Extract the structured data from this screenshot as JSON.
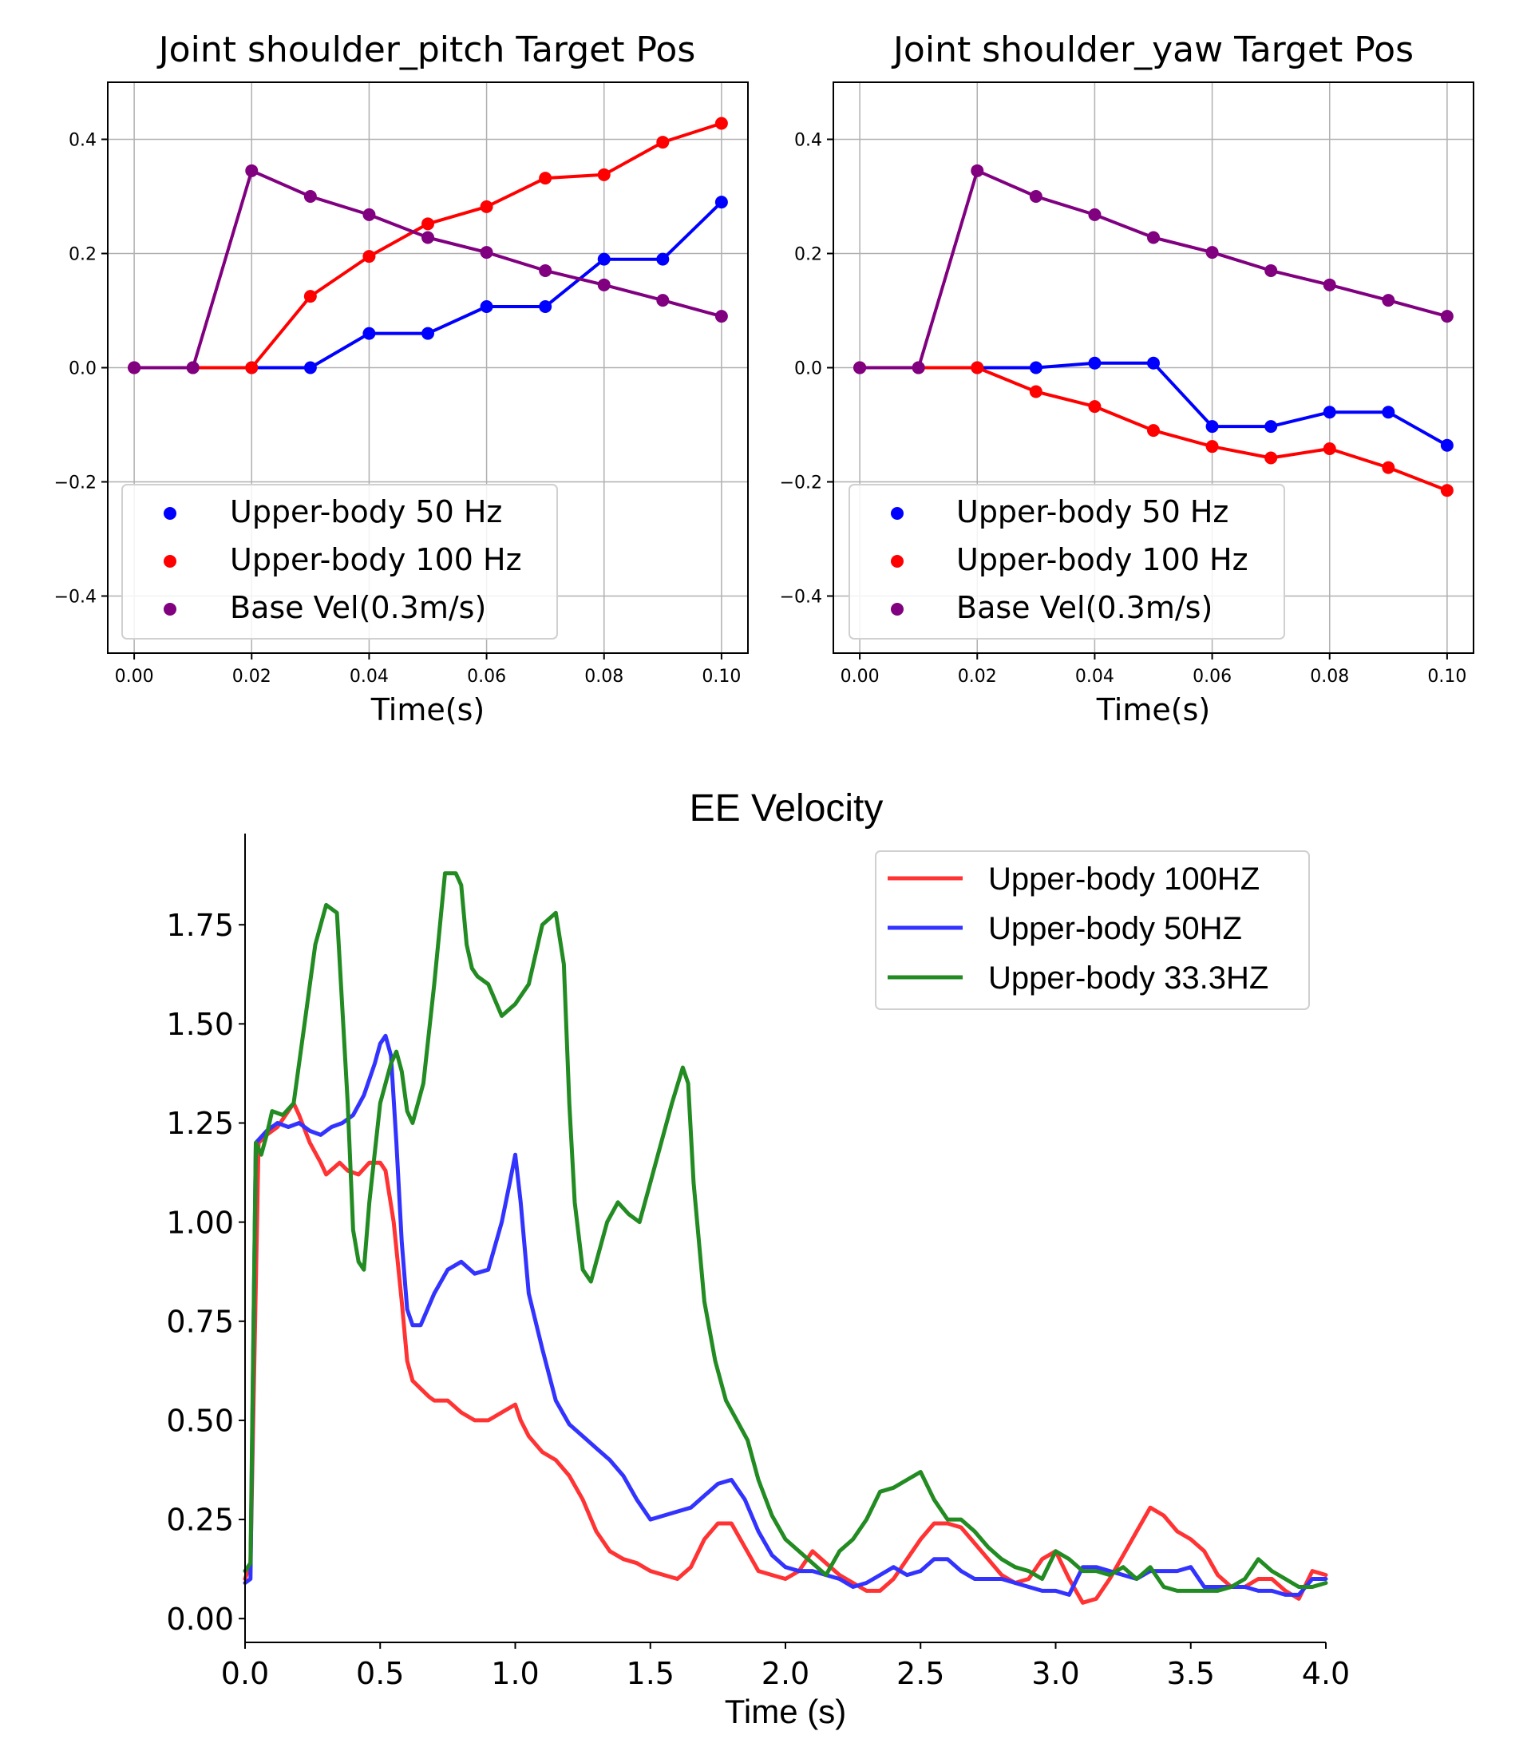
{
  "chart_data": [
    {
      "type": "line",
      "title": "Joint shoulder_pitch Target Pos",
      "xlabel": "Time(s)",
      "ylabel": "",
      "xlim": [
        -0.0045,
        0.1045
      ],
      "ylim": [
        -0.5,
        0.5
      ],
      "x_ticks": [
        0.0,
        0.02,
        0.04,
        0.06,
        0.08,
        0.1
      ],
      "x_tick_labels": [
        "0.00",
        "0.02",
        "0.04",
        "0.06",
        "0.08",
        "0.10"
      ],
      "y_ticks": [
        -0.4,
        -0.2,
        0.0,
        0.2,
        0.4
      ],
      "y_tick_labels": [
        "−0.4",
        "−0.2",
        "0.0",
        "0.2",
        "0.4"
      ],
      "grid": true,
      "legend_position": "lower-left",
      "markers": true,
      "x": [
        0.0,
        0.01,
        0.02,
        0.03,
        0.04,
        0.05,
        0.06,
        0.07,
        0.08,
        0.09,
        0.1
      ],
      "series": [
        {
          "name": "Upper-body 50 Hz",
          "color": "#0000ff",
          "values": [
            0.0,
            0.0,
            0.0,
            0.0,
            0.06,
            0.06,
            0.107,
            0.107,
            0.19,
            0.19,
            0.29
          ]
        },
        {
          "name": "Upper-body 100 Hz",
          "color": "#ff0000",
          "values": [
            0.0,
            0.0,
            0.0,
            0.125,
            0.195,
            0.252,
            0.282,
            0.332,
            0.338,
            0.395,
            0.428
          ]
        },
        {
          "name": "Base Vel(0.3m/s)",
          "color": "#800080",
          "values": [
            0.0,
            0.0,
            0.345,
            0.3,
            0.268,
            0.228,
            0.202,
            0.17,
            0.145,
            0.118,
            0.09
          ]
        }
      ]
    },
    {
      "type": "line",
      "title": "Joint shoulder_yaw Target Pos",
      "xlabel": "Time(s)",
      "ylabel": "",
      "xlim": [
        -0.0045,
        0.1045
      ],
      "ylim": [
        -0.5,
        0.5
      ],
      "x_ticks": [
        0.0,
        0.02,
        0.04,
        0.06,
        0.08,
        0.1
      ],
      "x_tick_labels": [
        "0.00",
        "0.02",
        "0.04",
        "0.06",
        "0.08",
        "0.10"
      ],
      "y_ticks": [
        -0.4,
        -0.2,
        0.0,
        0.2,
        0.4
      ],
      "y_tick_labels": [
        "−0.4",
        "−0.2",
        "0.0",
        "0.2",
        "0.4"
      ],
      "grid": true,
      "legend_position": "lower-left",
      "markers": true,
      "x": [
        0.0,
        0.01,
        0.02,
        0.03,
        0.04,
        0.05,
        0.06,
        0.07,
        0.08,
        0.09,
        0.1
      ],
      "series": [
        {
          "name": "Upper-body 50 Hz",
          "color": "#0000ff",
          "values": [
            0.0,
            0.0,
            0.0,
            0.0,
            0.008,
            0.008,
            -0.103,
            -0.103,
            -0.078,
            -0.078,
            -0.136
          ]
        },
        {
          "name": "Upper-body 100 Hz",
          "color": "#ff0000",
          "values": [
            0.0,
            0.0,
            0.0,
            -0.042,
            -0.068,
            -0.11,
            -0.138,
            -0.158,
            -0.142,
            -0.175,
            -0.215
          ]
        },
        {
          "name": "Base Vel(0.3m/s)",
          "color": "#800080",
          "values": [
            0.0,
            0.0,
            0.345,
            0.3,
            0.268,
            0.228,
            0.202,
            0.17,
            0.145,
            0.118,
            0.09
          ]
        }
      ]
    },
    {
      "type": "line",
      "title": "EE Velocity",
      "xlabel": "Time (s)",
      "ylabel": "",
      "xlim": [
        0.0,
        4.0
      ],
      "ylim": [
        -0.06,
        1.98
      ],
      "x_ticks": [
        0.0,
        0.5,
        1.0,
        1.5,
        2.0,
        2.5,
        3.0,
        3.5,
        4.0
      ],
      "x_tick_labels": [
        "0.0",
        "0.5",
        "1.0",
        "1.5",
        "2.0",
        "2.5",
        "3.0",
        "3.5",
        "4.0"
      ],
      "y_ticks": [
        0.0,
        0.25,
        0.5,
        0.75,
        1.0,
        1.25,
        1.5,
        1.75
      ],
      "y_tick_labels": [
        "0.00",
        "0.25",
        "0.50",
        "0.75",
        "1.00",
        "1.25",
        "1.50",
        "1.75"
      ],
      "grid": false,
      "legend_position": "top-right",
      "markers": false,
      "series": [
        {
          "name": "Upper-body 100HZ",
          "color": "#ff3333",
          "x": [
            0.0,
            0.02,
            0.05,
            0.08,
            0.12,
            0.16,
            0.18,
            0.2,
            0.24,
            0.28,
            0.3,
            0.35,
            0.38,
            0.42,
            0.46,
            0.5,
            0.52,
            0.55,
            0.58,
            0.6,
            0.62,
            0.65,
            0.68,
            0.7,
            0.75,
            0.8,
            0.85,
            0.9,
            0.95,
            1.0,
            1.02,
            1.05,
            1.1,
            1.15,
            1.2,
            1.25,
            1.3,
            1.35,
            1.4,
            1.45,
            1.5,
            1.55,
            1.6,
            1.65,
            1.7,
            1.75,
            1.8,
            1.85,
            1.9,
            1.95,
            2.0,
            2.05,
            2.1,
            2.15,
            2.2,
            2.25,
            2.3,
            2.35,
            2.4,
            2.45,
            2.5,
            2.55,
            2.6,
            2.65,
            2.7,
            2.75,
            2.8,
            2.85,
            2.9,
            2.95,
            3.0,
            3.05,
            3.1,
            3.15,
            3.2,
            3.25,
            3.3,
            3.35,
            3.4,
            3.45,
            3.5,
            3.55,
            3.6,
            3.65,
            3.7,
            3.75,
            3.8,
            3.85,
            3.9,
            3.95,
            4.0
          ],
          "values": [
            0.1,
            0.14,
            1.2,
            1.22,
            1.24,
            1.28,
            1.3,
            1.27,
            1.2,
            1.15,
            1.12,
            1.15,
            1.13,
            1.12,
            1.15,
            1.15,
            1.13,
            1.0,
            0.8,
            0.65,
            0.6,
            0.58,
            0.56,
            0.55,
            0.55,
            0.52,
            0.5,
            0.5,
            0.52,
            0.54,
            0.5,
            0.46,
            0.42,
            0.4,
            0.36,
            0.3,
            0.22,
            0.17,
            0.15,
            0.14,
            0.12,
            0.11,
            0.1,
            0.13,
            0.2,
            0.24,
            0.24,
            0.18,
            0.12,
            0.11,
            0.1,
            0.12,
            0.17,
            0.14,
            0.11,
            0.09,
            0.07,
            0.07,
            0.1,
            0.15,
            0.2,
            0.24,
            0.24,
            0.23,
            0.19,
            0.15,
            0.11,
            0.09,
            0.1,
            0.15,
            0.17,
            0.1,
            0.04,
            0.05,
            0.1,
            0.16,
            0.22,
            0.28,
            0.26,
            0.22,
            0.2,
            0.17,
            0.11,
            0.08,
            0.08,
            0.1,
            0.1,
            0.07,
            0.05,
            0.12,
            0.11
          ]
        },
        {
          "name": "Upper-body 50HZ",
          "color": "#3333ff",
          "x": [
            0.0,
            0.02,
            0.04,
            0.08,
            0.12,
            0.16,
            0.2,
            0.24,
            0.28,
            0.32,
            0.36,
            0.4,
            0.44,
            0.48,
            0.5,
            0.52,
            0.54,
            0.56,
            0.58,
            0.6,
            0.62,
            0.65,
            0.7,
            0.75,
            0.8,
            0.85,
            0.9,
            0.95,
            0.98,
            1.0,
            1.02,
            1.05,
            1.1,
            1.15,
            1.2,
            1.25,
            1.3,
            1.35,
            1.4,
            1.45,
            1.5,
            1.55,
            1.6,
            1.65,
            1.7,
            1.75,
            1.8,
            1.85,
            1.9,
            1.95,
            2.0,
            2.05,
            2.1,
            2.15,
            2.2,
            2.25,
            2.3,
            2.35,
            2.4,
            2.45,
            2.5,
            2.55,
            2.6,
            2.65,
            2.7,
            2.75,
            2.8,
            2.85,
            2.9,
            2.95,
            3.0,
            3.05,
            3.1,
            3.15,
            3.2,
            3.25,
            3.3,
            3.35,
            3.4,
            3.45,
            3.5,
            3.55,
            3.6,
            3.65,
            3.7,
            3.75,
            3.8,
            3.85,
            3.9,
            3.95,
            4.0
          ],
          "values": [
            0.09,
            0.1,
            1.2,
            1.23,
            1.25,
            1.24,
            1.25,
            1.23,
            1.22,
            1.24,
            1.25,
            1.27,
            1.32,
            1.4,
            1.45,
            1.47,
            1.42,
            1.2,
            0.95,
            0.78,
            0.74,
            0.74,
            0.82,
            0.88,
            0.9,
            0.87,
            0.88,
            1.0,
            1.1,
            1.17,
            1.05,
            0.82,
            0.68,
            0.55,
            0.49,
            0.46,
            0.43,
            0.4,
            0.36,
            0.3,
            0.25,
            0.26,
            0.27,
            0.28,
            0.31,
            0.34,
            0.35,
            0.3,
            0.22,
            0.16,
            0.13,
            0.12,
            0.12,
            0.11,
            0.1,
            0.08,
            0.09,
            0.11,
            0.13,
            0.11,
            0.12,
            0.15,
            0.15,
            0.12,
            0.1,
            0.1,
            0.1,
            0.09,
            0.08,
            0.07,
            0.07,
            0.06,
            0.13,
            0.13,
            0.12,
            0.11,
            0.1,
            0.12,
            0.12,
            0.12,
            0.13,
            0.08,
            0.08,
            0.08,
            0.08,
            0.07,
            0.07,
            0.06,
            0.06,
            0.1,
            0.1
          ]
        },
        {
          "name": "Upper-body 33.3HZ",
          "color": "#228b22",
          "x": [
            0.0,
            0.02,
            0.04,
            0.06,
            0.08,
            0.1,
            0.14,
            0.18,
            0.22,
            0.26,
            0.3,
            0.34,
            0.38,
            0.4,
            0.42,
            0.44,
            0.46,
            0.5,
            0.54,
            0.56,
            0.58,
            0.6,
            0.62,
            0.66,
            0.7,
            0.74,
            0.78,
            0.8,
            0.82,
            0.84,
            0.86,
            0.9,
            0.95,
            1.0,
            1.05,
            1.1,
            1.15,
            1.18,
            1.2,
            1.22,
            1.25,
            1.28,
            1.3,
            1.34,
            1.38,
            1.42,
            1.46,
            1.5,
            1.54,
            1.58,
            1.62,
            1.64,
            1.66,
            1.7,
            1.74,
            1.78,
            1.82,
            1.86,
            1.9,
            1.95,
            2.0,
            2.05,
            2.1,
            2.15,
            2.2,
            2.25,
            2.3,
            2.35,
            2.4,
            2.45,
            2.5,
            2.55,
            2.6,
            2.65,
            2.7,
            2.75,
            2.8,
            2.85,
            2.9,
            2.95,
            3.0,
            3.05,
            3.1,
            3.15,
            3.2,
            3.25,
            3.3,
            3.35,
            3.4,
            3.45,
            3.5,
            3.55,
            3.6,
            3.65,
            3.7,
            3.75,
            3.8,
            3.85,
            3.9,
            3.95,
            4.0
          ],
          "values": [
            0.12,
            0.14,
            1.2,
            1.17,
            1.22,
            1.28,
            1.27,
            1.3,
            1.5,
            1.7,
            1.8,
            1.78,
            1.3,
            0.98,
            0.9,
            0.88,
            1.05,
            1.3,
            1.4,
            1.43,
            1.38,
            1.28,
            1.25,
            1.35,
            1.6,
            1.88,
            1.88,
            1.85,
            1.7,
            1.64,
            1.62,
            1.6,
            1.52,
            1.55,
            1.6,
            1.75,
            1.78,
            1.65,
            1.3,
            1.05,
            0.88,
            0.85,
            0.9,
            1.0,
            1.05,
            1.02,
            1.0,
            1.1,
            1.2,
            1.3,
            1.39,
            1.35,
            1.1,
            0.8,
            0.65,
            0.55,
            0.5,
            0.45,
            0.35,
            0.26,
            0.2,
            0.17,
            0.14,
            0.11,
            0.17,
            0.2,
            0.25,
            0.32,
            0.33,
            0.35,
            0.37,
            0.3,
            0.25,
            0.25,
            0.22,
            0.18,
            0.15,
            0.13,
            0.12,
            0.1,
            0.17,
            0.15,
            0.12,
            0.12,
            0.11,
            0.13,
            0.1,
            0.13,
            0.08,
            0.07,
            0.07,
            0.07,
            0.07,
            0.08,
            0.1,
            0.15,
            0.12,
            0.1,
            0.08,
            0.08,
            0.09
          ]
        }
      ]
    }
  ]
}
